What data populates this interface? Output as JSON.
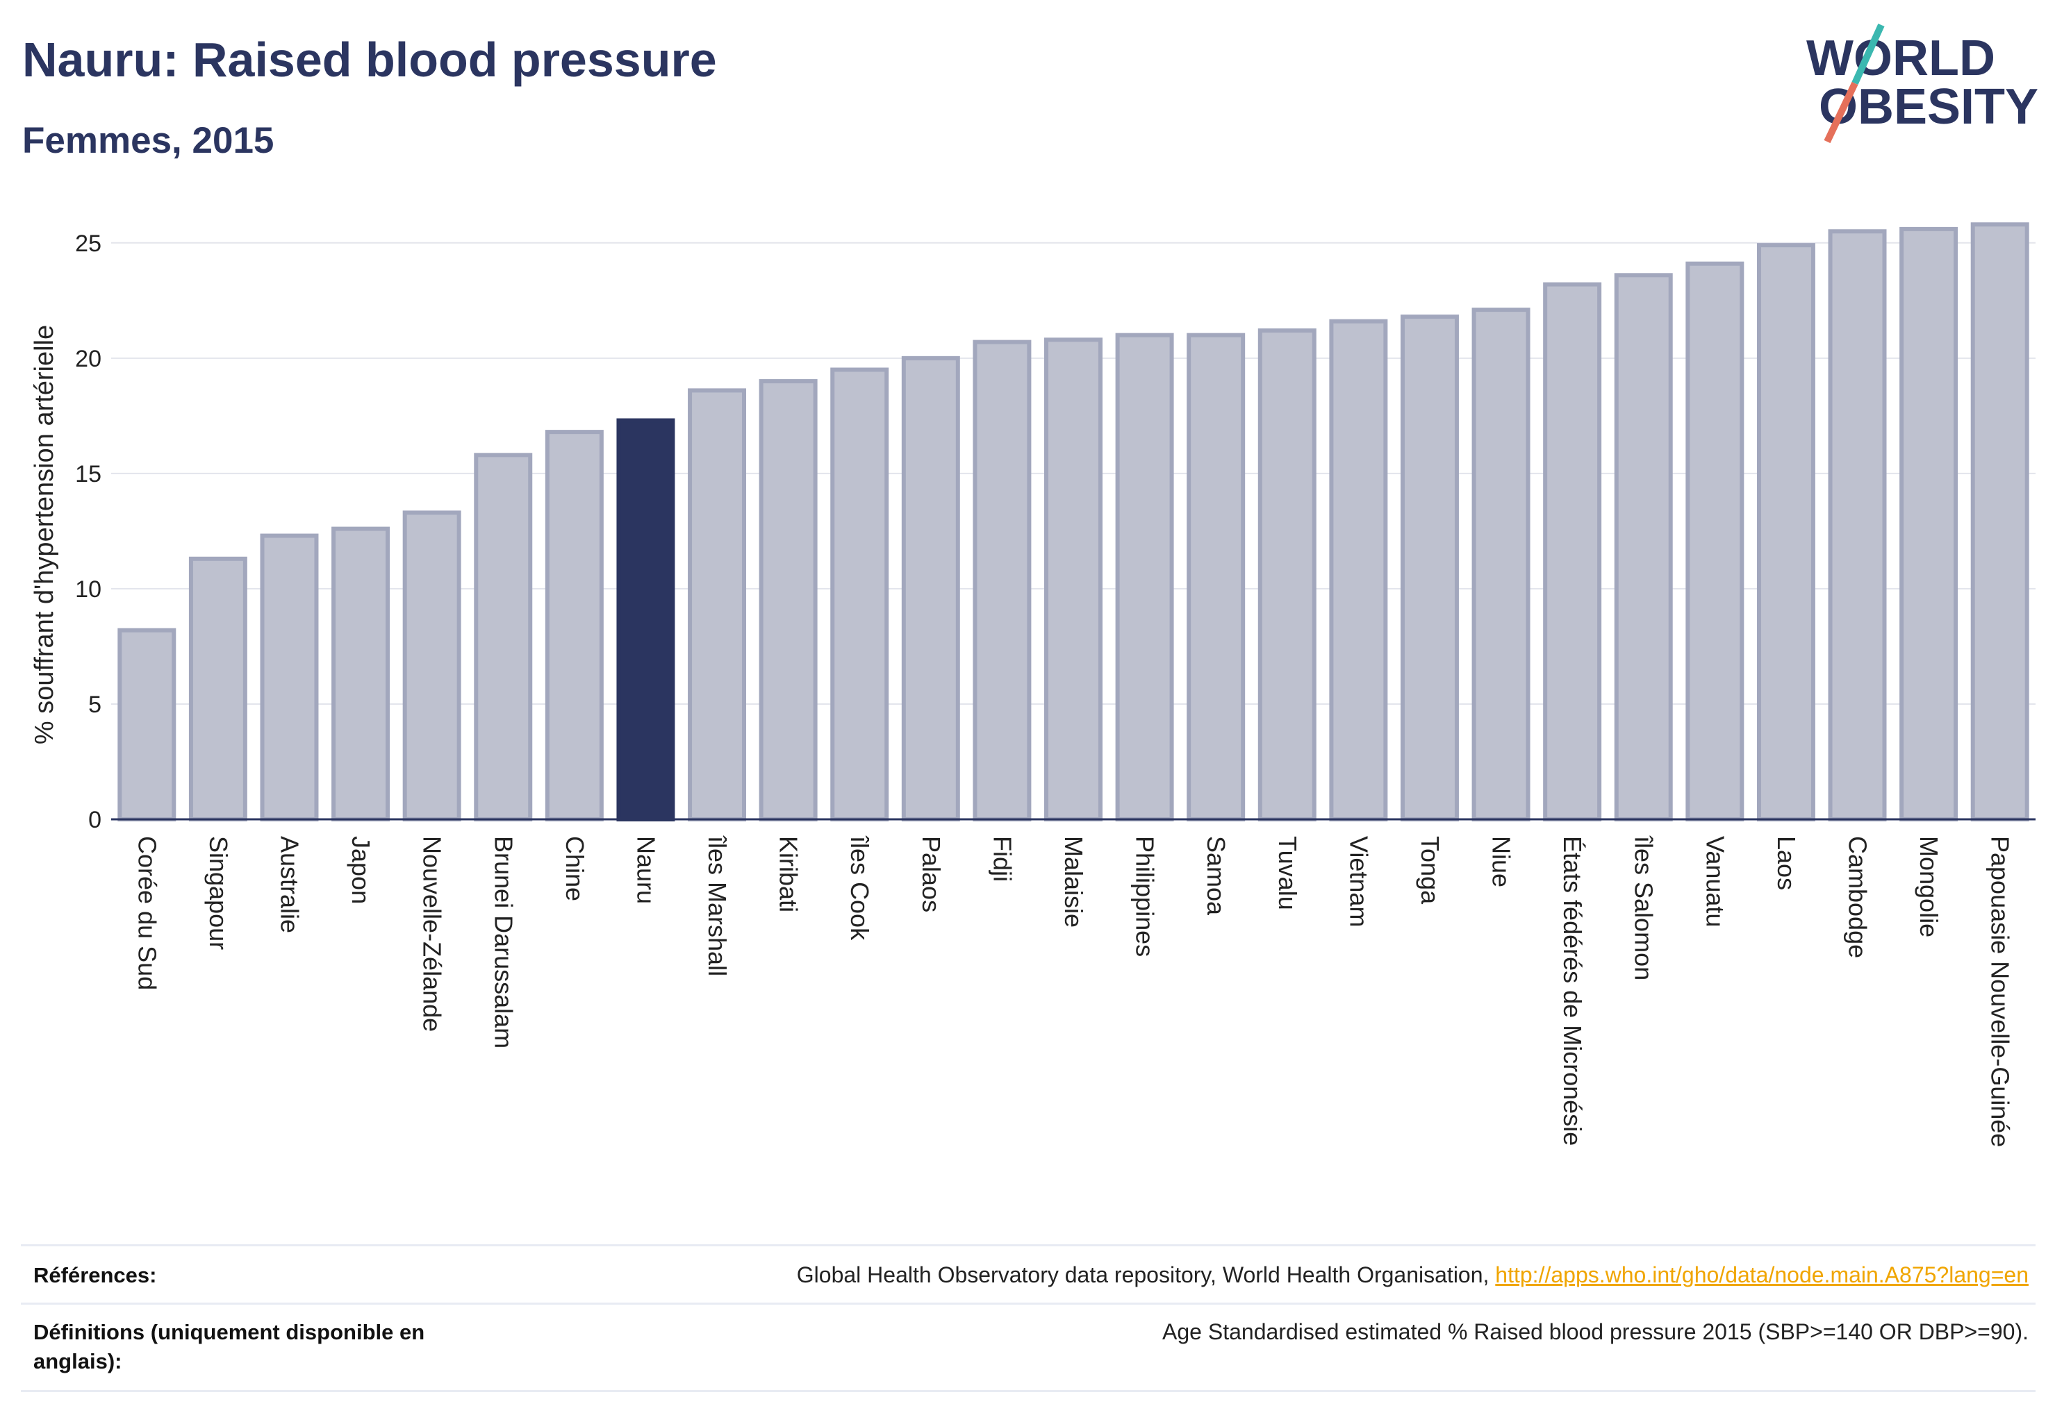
{
  "header": {
    "title": "Nauru: Raised blood pressure",
    "subtitle": "Femmes, 2015"
  },
  "logo": {
    "line1": "WORLD",
    "line2": "OBESITY"
  },
  "chart_data": {
    "type": "bar",
    "ylabel": "% souffrant d'hypertension artérielle",
    "ylim": [
      0,
      26.5
    ],
    "yticks": [
      0,
      5,
      10,
      15,
      20,
      25
    ],
    "grid": true,
    "highlight": "Nauru",
    "colors": {
      "bar": "#bec1cf",
      "bar_edge": "#a2a7bd",
      "highlight": "#2b3560",
      "axis": "#2b3560",
      "grid": "#e3e5ec"
    },
    "categories": [
      "Corée du Sud",
      "Singapour",
      "Australie",
      "Japon",
      "Nouvelle-Zélande",
      "Brunei Darussalam",
      "Chine",
      "Nauru",
      "îles Marshall",
      "Kiribati",
      "îles Cook",
      "Palaos",
      "Fidji",
      "Malaisie",
      "Philippines",
      "Samoa",
      "Tuvalu",
      "Vietnam",
      "Tonga",
      "Niue",
      "États fédérés de Micronésie",
      "îles Salomon",
      "Vanuatu",
      "Laos",
      "Cambodge",
      "Mongolie",
      "Papouasie Nouvelle-Guinée"
    ],
    "values": [
      8.2,
      11.3,
      12.3,
      12.6,
      13.3,
      15.8,
      16.8,
      17.3,
      18.6,
      19.0,
      19.5,
      20.0,
      20.7,
      20.8,
      21.0,
      21.0,
      21.2,
      21.6,
      21.8,
      22.1,
      23.2,
      23.6,
      24.1,
      24.9,
      25.5,
      25.6,
      25.8
    ]
  },
  "footer": {
    "references_label": "Références:",
    "references_text": "Global Health Observatory data repository, World Health Organisation, ",
    "references_link": "http://apps.who.int/gho/data/node.main.A875?lang=en",
    "definitions_label": "Définitions (uniquement disponible en anglais):",
    "definitions_text": "Age Standardised estimated % Raised blood pressure 2015 (SBP>=140 OR DBP>=90)."
  }
}
